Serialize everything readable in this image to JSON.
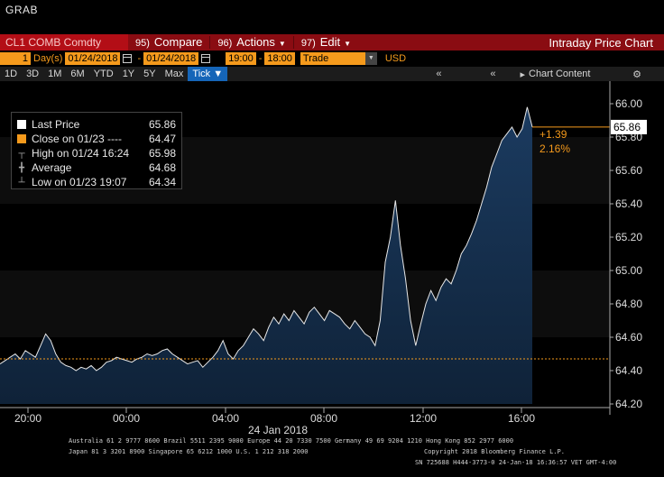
{
  "window": {
    "title": "GRAB"
  },
  "cmdbar": {
    "ticker": "CL1 COMB Comdty",
    "compare_num": "95)",
    "compare": "Compare",
    "actions_num": "96)",
    "actions": "Actions",
    "edit_num": "97)",
    "edit": "Edit",
    "title": "Intraday Price Chart"
  },
  "params": {
    "period_num": "1",
    "period_unit": "Day(s)",
    "start_date": "01/24/2018",
    "dash": "-",
    "end_date": "01/24/2018",
    "start_time": "19:00",
    "dash2": "-",
    "end_time": "18:00",
    "field": "Trade",
    "currency": "USD"
  },
  "toolbar": {
    "ranges": [
      "1D",
      "3D",
      "1M",
      "6M",
      "YTD",
      "1Y",
      "5Y",
      "Max"
    ],
    "tick_label": "Tick ▼",
    "chart_content": "Chart Content"
  },
  "legend": {
    "last_label": "Last Price",
    "last_val": "65.86",
    "close_label": "Close on 01/23 ----",
    "close_val": "64.47",
    "high_label": "High on 01/24 16:24",
    "high_val": "65.98",
    "avg_label": "Average",
    "avg_val": "64.68",
    "low_label": "Low on 01/23 19:07",
    "low_val": "64.34"
  },
  "annotations": {
    "last_tag": "65.86",
    "change": "+1.39",
    "change_pct": "2.16%"
  },
  "chart_data": {
    "type": "area",
    "ylim": [
      64.2,
      66.0
    ],
    "y_ticks": [
      "66.00",
      "65.80",
      "65.60",
      "65.40",
      "65.20",
      "65.00",
      "64.80",
      "64.60",
      "64.40",
      "64.20"
    ],
    "x_ticks": [
      "20:00",
      "00:00",
      "04:00",
      "08:00",
      "12:00",
      "16:00"
    ],
    "x_date_label": "24 Jan 2018",
    "close_line": 64.47,
    "series": [
      {
        "values": [
          64.44,
          64.46,
          64.48,
          64.5,
          64.47,
          64.52,
          64.5,
          64.48,
          64.55,
          64.62,
          64.58,
          64.5,
          64.45,
          64.43,
          64.42,
          64.4,
          64.42,
          64.41,
          64.43,
          64.4,
          64.42,
          64.45,
          64.46,
          64.48,
          64.47,
          64.46,
          64.45,
          64.47,
          64.48,
          64.5,
          64.49,
          64.5,
          64.52,
          64.53,
          64.5,
          64.48,
          64.46,
          64.44,
          64.45,
          64.46,
          64.42,
          64.45,
          64.48,
          64.52,
          64.58,
          64.5,
          64.47,
          64.52,
          64.55,
          64.6,
          64.65,
          64.62,
          64.58,
          64.66,
          64.72,
          64.68,
          64.74,
          64.7,
          64.76,
          64.72,
          64.68,
          64.75,
          64.78,
          64.74,
          64.7,
          64.76,
          64.74,
          64.72,
          64.68,
          64.65,
          64.7,
          64.66,
          64.62,
          64.6,
          64.55,
          64.7,
          65.05,
          65.2,
          65.42,
          65.15,
          64.95,
          64.7,
          64.55,
          64.68,
          64.8,
          64.88,
          64.82,
          64.9,
          64.95,
          64.92,
          65.0,
          65.1,
          65.15,
          65.22,
          65.3,
          65.4,
          65.5,
          65.62,
          65.7,
          65.78,
          65.82,
          65.86,
          65.8,
          65.85,
          65.98,
          65.86
        ]
      }
    ]
  },
  "footer": {
    "line1": "Australia 61 2 9777 8600 Brazil 5511 2395 9000 Europe 44 20 7330 7500 Germany 49 69 9204 1210 Hong Kong 852 2977 6000",
    "line2": "Japan 81 3 3201 8900         Singapore 65 6212 1000         U.S. 1 212 318 2000",
    "line3": "Copyright 2018 Bloomberg Finance L.P.",
    "line4": "SN 725688 H444-3773-0 24-Jan-18 16:36:57 VET  GMT-4:00"
  },
  "colors": {
    "accent": "#f59a1c",
    "brand_red": "#8a0c12",
    "area_fill": "#17324f",
    "area_line": "#e8e8e8"
  }
}
